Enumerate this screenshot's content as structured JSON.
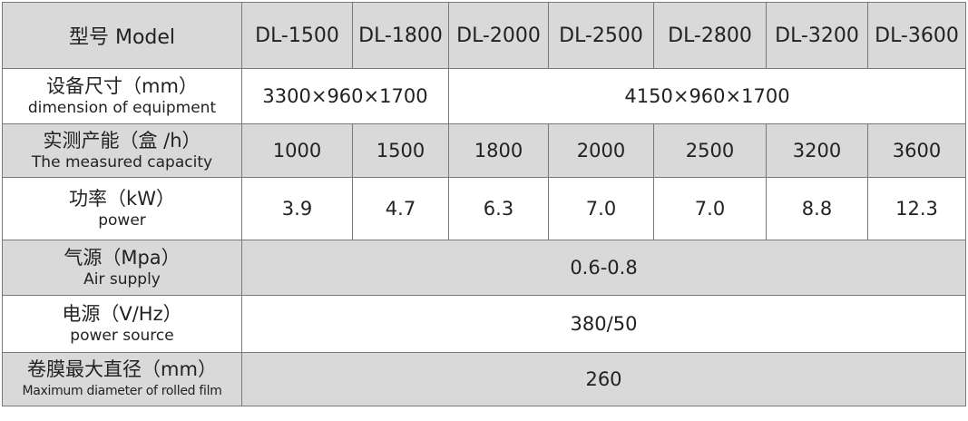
{
  "header": {
    "label": "型号 Model",
    "models": [
      "DL-1500",
      "DL-1800",
      "DL-2000",
      "DL-2500",
      "DL-2800",
      "DL-3200",
      "DL-3600"
    ]
  },
  "rows": {
    "dimension": {
      "label_cn": "设备尺寸（mm）",
      "label_en": "dimension of equipment",
      "value_a": "3300×960×1700",
      "value_b": "4150×960×1700"
    },
    "capacity": {
      "label_cn": "实测产能（盒 /h）",
      "label_en": "The measured capacity",
      "values": [
        "1000",
        "1500",
        "1800",
        "2000",
        "2500",
        "3200",
        "3600"
      ]
    },
    "power": {
      "label_cn": "功率（kW）",
      "label_en": "power",
      "values": [
        "3.9",
        "4.7",
        "6.3",
        "7.0",
        "7.0",
        "8.8",
        "12.3"
      ]
    },
    "air": {
      "label_cn": "气源（Mpa）",
      "label_en": "Air supply",
      "value": "0.6-0.8"
    },
    "power_source": {
      "label_cn": "电源（V/Hz）",
      "label_en": "power source",
      "value": "380/50"
    },
    "film": {
      "label_cn": "卷膜最大直径（mm）",
      "label_en": "Maximum diameter of rolled film",
      "value": "260"
    }
  }
}
